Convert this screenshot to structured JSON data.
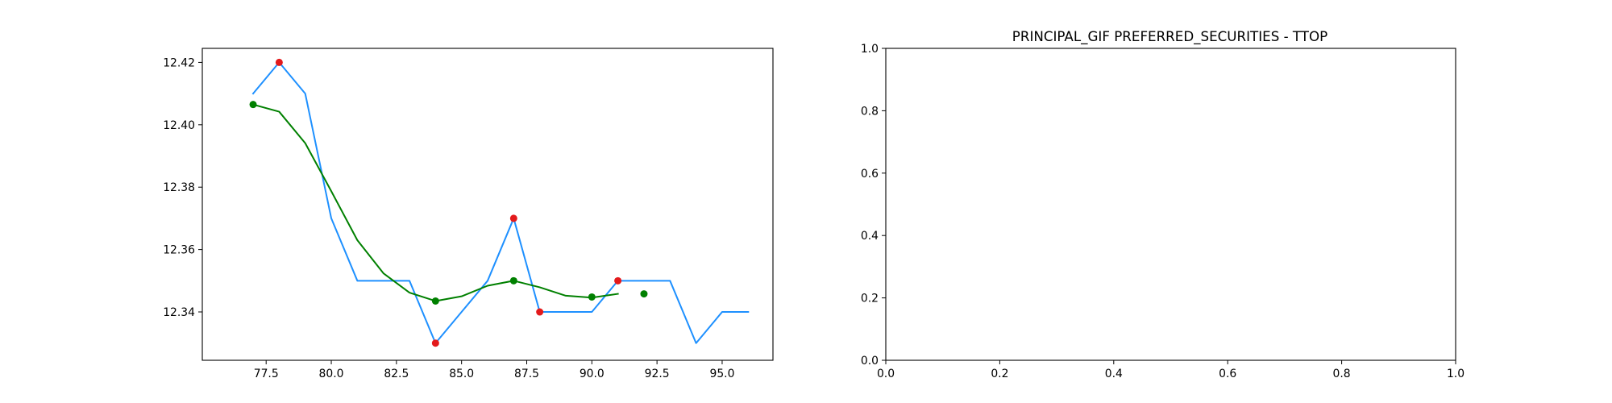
{
  "figure": {
    "background": "#ffffff"
  },
  "colors": {
    "price_line": "#1e90ff",
    "smooth_line": "#008000",
    "extrema_points": "#e31a1c",
    "marker_points": "#008000",
    "axes": "#000000"
  },
  "chart_data": [
    {
      "type": "line",
      "title": "",
      "xlabel": "",
      "ylabel": "",
      "xlim": [
        75.05,
        96.95
      ],
      "ylim": [
        12.3245,
        12.4245
      ],
      "grid": false,
      "legend": "none",
      "x_ticks": [
        77.5,
        80.0,
        82.5,
        85.0,
        87.5,
        90.0,
        92.5,
        95.0
      ],
      "x_tick_labels": [
        "77.5",
        "80.0",
        "82.5",
        "85.0",
        "87.5",
        "90.0",
        "92.5",
        "95.0"
      ],
      "y_ticks": [
        12.34,
        12.36,
        12.38,
        12.4,
        12.42
      ],
      "y_tick_labels": [
        "12.34",
        "12.36",
        "12.38",
        "12.40",
        "12.42"
      ],
      "series": [
        {
          "kind": "line",
          "color": "#1e90ff",
          "x": [
            77,
            78,
            79,
            80,
            81,
            82,
            83,
            84,
            85,
            86,
            87,
            88,
            89,
            90,
            91,
            92,
            93,
            94,
            95,
            96
          ],
          "y": [
            12.41,
            12.42,
            12.41,
            12.37,
            12.35,
            12.35,
            12.35,
            12.33,
            12.34,
            12.35,
            12.37,
            12.34,
            12.34,
            12.34,
            12.35,
            12.35,
            12.35,
            12.33,
            12.34,
            12.34
          ]
        },
        {
          "kind": "line",
          "color": "#008000",
          "x": [
            77,
            78,
            79,
            80,
            81,
            82,
            83,
            84,
            85,
            86,
            87,
            88,
            89,
            90,
            91
          ],
          "y": [
            12.4065,
            12.4042,
            12.3941,
            12.3787,
            12.363,
            12.3524,
            12.3462,
            12.3435,
            12.345,
            12.3484,
            12.35,
            12.3479,
            12.3452,
            12.3446,
            12.3458
          ]
        },
        {
          "kind": "scatter",
          "color": "#e31a1c",
          "x": [
            78,
            84,
            87,
            88,
            91
          ],
          "y": [
            12.42,
            12.33,
            12.37,
            12.34,
            12.35
          ]
        },
        {
          "kind": "scatter",
          "color": "#008000",
          "x": [
            77,
            84,
            87,
            90,
            92
          ],
          "y": [
            12.4065,
            12.3435,
            12.35,
            12.3448,
            12.3458
          ]
        }
      ]
    },
    {
      "type": "line",
      "title": "PRINCIPAL_GIF PREFERRED_SECURITIES - TTOP",
      "xlabel": "",
      "ylabel": "",
      "xlim": [
        0.0,
        1.0
      ],
      "ylim": [
        0.0,
        1.0
      ],
      "grid": false,
      "legend": "none",
      "x_ticks": [
        0.0,
        0.2,
        0.4,
        0.6,
        0.8,
        1.0
      ],
      "x_tick_labels": [
        "0.0",
        "0.2",
        "0.4",
        "0.6",
        "0.8",
        "1.0"
      ],
      "y_ticks": [
        0.0,
        0.2,
        0.4,
        0.6,
        0.8,
        1.0
      ],
      "y_tick_labels": [
        "0.0",
        "0.2",
        "0.4",
        "0.6",
        "0.8",
        "1.0"
      ],
      "series": []
    }
  ]
}
